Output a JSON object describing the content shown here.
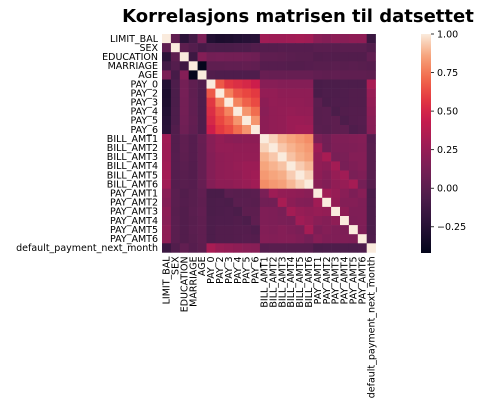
{
  "chart_data": {
    "type": "heatmap",
    "title": "Korrelasjons matrisen til datsettet",
    "labels": [
      "LIMIT_BAL",
      "SEX",
      "EDUCATION",
      "MARRIAGE",
      "AGE",
      "PAY_0",
      "PAY_2",
      "PAY_3",
      "PAY_4",
      "PAY_5",
      "PAY_6",
      "BILL_AMT1",
      "BILL_AMT2",
      "BILL_AMT3",
      "BILL_AMT4",
      "BILL_AMT5",
      "BILL_AMT6",
      "PAY_AMT1",
      "PAY_AMT2",
      "PAY_AMT3",
      "PAY_AMT4",
      "PAY_AMT5",
      "PAY_AMT6",
      "default_payment_next_month"
    ],
    "xlabel": "",
    "ylabel": "",
    "colorbar": {
      "range": [
        -0.42,
        1.0
      ],
      "ticks": [
        -0.25,
        0.0,
        0.25,
        0.5,
        0.75,
        1.0
      ],
      "tick_labels": [
        "−0.25",
        "0.00",
        "0.25",
        "0.50",
        "0.75",
        "1.00"
      ],
      "colormap": "rocket"
    },
    "matrix": [
      [
        1.0,
        0.02,
        -0.22,
        -0.11,
        0.14,
        -0.27,
        -0.3,
        -0.29,
        -0.27,
        -0.25,
        -0.24,
        0.29,
        0.28,
        0.28,
        0.29,
        0.3,
        0.29,
        0.2,
        0.18,
        0.21,
        0.2,
        0.22,
        0.22,
        -0.15
      ],
      [
        0.02,
        1.0,
        0.01,
        -0.03,
        -0.09,
        -0.06,
        -0.07,
        -0.07,
        -0.06,
        -0.06,
        -0.04,
        -0.03,
        -0.03,
        -0.02,
        -0.02,
        -0.02,
        -0.02,
        0.0,
        -0.0,
        -0.01,
        -0.0,
        -0.0,
        -0.0,
        -0.04
      ],
      [
        -0.22,
        0.01,
        1.0,
        -0.14,
        0.18,
        0.11,
        0.12,
        0.11,
        0.11,
        0.1,
        0.09,
        0.02,
        0.02,
        0.01,
        -0.0,
        -0.01,
        -0.01,
        -0.04,
        -0.03,
        -0.04,
        -0.04,
        -0.04,
        -0.04,
        0.03
      ],
      [
        -0.11,
        -0.03,
        -0.14,
        1.0,
        -0.41,
        0.02,
        0.02,
        0.03,
        0.03,
        0.04,
        0.03,
        -0.02,
        -0.02,
        -0.02,
        -0.03,
        -0.03,
        -0.02,
        -0.01,
        -0.01,
        -0.0,
        -0.01,
        -0.0,
        -0.01,
        -0.02
      ],
      [
        0.14,
        -0.09,
        0.18,
        -0.41,
        1.0,
        -0.04,
        -0.05,
        -0.05,
        -0.05,
        -0.05,
        -0.05,
        0.06,
        0.05,
        0.05,
        0.05,
        0.05,
        0.05,
        0.03,
        0.02,
        0.03,
        0.02,
        0.02,
        0.02,
        0.01
      ],
      [
        -0.27,
        -0.06,
        0.11,
        0.02,
        -0.04,
        1.0,
        0.67,
        0.57,
        0.54,
        0.51,
        0.47,
        0.19,
        0.19,
        0.18,
        0.18,
        0.18,
        0.18,
        -0.08,
        -0.07,
        -0.07,
        -0.06,
        -0.06,
        -0.06,
        0.32
      ],
      [
        -0.3,
        -0.07,
        0.12,
        0.02,
        -0.05,
        0.67,
        1.0,
        0.77,
        0.66,
        0.62,
        0.58,
        0.24,
        0.24,
        0.22,
        0.22,
        0.22,
        0.22,
        -0.08,
        -0.06,
        -0.06,
        -0.05,
        -0.04,
        -0.04,
        0.26
      ],
      [
        -0.29,
        -0.07,
        0.11,
        0.03,
        -0.05,
        0.57,
        0.77,
        1.0,
        0.78,
        0.69,
        0.63,
        0.21,
        0.24,
        0.23,
        0.23,
        0.23,
        0.22,
        0.0,
        -0.07,
        -0.05,
        -0.05,
        -0.04,
        -0.04,
        0.24
      ],
      [
        -0.27,
        -0.06,
        0.11,
        0.03,
        -0.05,
        0.54,
        0.66,
        0.78,
        1.0,
        0.82,
        0.72,
        0.2,
        0.23,
        0.24,
        0.25,
        0.24,
        0.24,
        -0.01,
        -0.0,
        -0.07,
        -0.04,
        -0.03,
        -0.03,
        0.22
      ],
      [
        -0.25,
        -0.06,
        0.1,
        0.04,
        -0.05,
        0.51,
        0.62,
        0.69,
        0.82,
        1.0,
        0.82,
        0.21,
        0.23,
        0.24,
        0.27,
        0.27,
        0.26,
        -0.01,
        -0.0,
        0.01,
        -0.06,
        -0.03,
        -0.02,
        0.2
      ],
      [
        -0.24,
        -0.04,
        0.09,
        0.03,
        -0.05,
        0.47,
        0.58,
        0.63,
        0.72,
        0.82,
        1.0,
        0.21,
        0.23,
        0.24,
        0.27,
        0.29,
        0.29,
        -0.0,
        -0.01,
        0.01,
        0.02,
        -0.05,
        -0.03,
        0.19
      ],
      [
        0.29,
        -0.03,
        0.02,
        -0.02,
        0.06,
        0.19,
        0.24,
        0.21,
        0.2,
        0.21,
        0.21,
        1.0,
        0.95,
        0.89,
        0.86,
        0.83,
        0.8,
        0.14,
        0.1,
        0.16,
        0.16,
        0.17,
        0.18,
        -0.02
      ],
      [
        0.28,
        -0.03,
        0.02,
        -0.02,
        0.05,
        0.19,
        0.24,
        0.24,
        0.23,
        0.23,
        0.23,
        0.95,
        1.0,
        0.93,
        0.89,
        0.86,
        0.83,
        0.28,
        0.1,
        0.15,
        0.15,
        0.16,
        0.17,
        -0.01
      ],
      [
        0.28,
        -0.02,
        0.01,
        -0.02,
        0.05,
        0.18,
        0.22,
        0.23,
        0.24,
        0.24,
        0.24,
        0.89,
        0.93,
        1.0,
        0.92,
        0.88,
        0.85,
        0.24,
        0.32,
        0.13,
        0.14,
        0.18,
        0.18,
        -0.01
      ],
      [
        0.29,
        -0.02,
        -0.0,
        -0.03,
        0.05,
        0.18,
        0.22,
        0.23,
        0.25,
        0.27,
        0.27,
        0.86,
        0.89,
        0.92,
        1.0,
        0.94,
        0.9,
        0.23,
        0.21,
        0.3,
        0.13,
        0.16,
        0.18,
        -0.01
      ],
      [
        0.3,
        -0.02,
        -0.01,
        -0.03,
        0.05,
        0.18,
        0.22,
        0.23,
        0.24,
        0.27,
        0.29,
        0.83,
        0.86,
        0.88,
        0.94,
        1.0,
        0.95,
        0.22,
        0.18,
        0.25,
        0.29,
        0.14,
        0.16,
        -0.01
      ],
      [
        0.29,
        -0.02,
        -0.01,
        -0.02,
        0.05,
        0.18,
        0.22,
        0.22,
        0.24,
        0.26,
        0.29,
        0.8,
        0.83,
        0.85,
        0.9,
        0.95,
        1.0,
        0.2,
        0.17,
        0.23,
        0.25,
        0.31,
        0.12,
        -0.01
      ],
      [
        0.2,
        0.0,
        -0.04,
        -0.01,
        0.03,
        -0.08,
        -0.08,
        0.0,
        -0.01,
        -0.01,
        -0.0,
        0.14,
        0.28,
        0.24,
        0.23,
        0.22,
        0.2,
        1.0,
        0.29,
        0.25,
        0.2,
        0.15,
        0.19,
        -0.07
      ],
      [
        0.18,
        -0.0,
        -0.03,
        -0.01,
        0.02,
        -0.07,
        -0.06,
        -0.07,
        -0.0,
        -0.0,
        -0.01,
        0.1,
        0.1,
        0.32,
        0.21,
        0.18,
        0.17,
        0.29,
        1.0,
        0.24,
        0.18,
        0.18,
        0.16,
        -0.06
      ],
      [
        0.21,
        -0.01,
        -0.04,
        -0.0,
        0.03,
        -0.07,
        -0.06,
        -0.05,
        -0.07,
        0.01,
        0.01,
        0.16,
        0.15,
        0.13,
        0.3,
        0.25,
        0.23,
        0.25,
        0.24,
        1.0,
        0.22,
        0.16,
        0.16,
        -0.06
      ],
      [
        0.2,
        -0.0,
        -0.04,
        -0.01,
        0.02,
        -0.06,
        -0.05,
        -0.05,
        -0.04,
        -0.06,
        0.02,
        0.16,
        0.15,
        0.14,
        0.13,
        0.29,
        0.25,
        0.2,
        0.18,
        0.22,
        1.0,
        0.15,
        0.16,
        -0.06
      ],
      [
        0.22,
        -0.0,
        -0.04,
        -0.0,
        0.02,
        -0.06,
        -0.04,
        -0.04,
        -0.03,
        -0.03,
        -0.05,
        0.17,
        0.16,
        0.18,
        0.16,
        0.14,
        0.31,
        0.15,
        0.18,
        0.16,
        0.15,
        1.0,
        0.15,
        -0.06
      ],
      [
        0.22,
        -0.0,
        -0.04,
        -0.01,
        0.02,
        -0.06,
        -0.04,
        -0.04,
        -0.03,
        -0.02,
        -0.03,
        0.18,
        0.17,
        0.18,
        0.18,
        0.16,
        0.12,
        0.19,
        0.16,
        0.16,
        0.16,
        0.15,
        1.0,
        -0.05
      ],
      [
        -0.15,
        -0.04,
        0.03,
        -0.02,
        0.01,
        0.32,
        0.26,
        0.24,
        0.22,
        0.2,
        0.19,
        -0.02,
        -0.01,
        -0.01,
        -0.01,
        -0.01,
        -0.01,
        -0.07,
        -0.06,
        -0.06,
        -0.06,
        -0.06,
        -0.05,
        1.0
      ]
    ]
  }
}
